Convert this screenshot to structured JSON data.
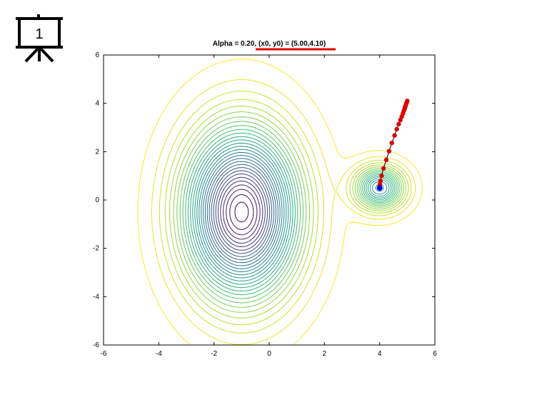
{
  "slide_badge": {
    "number": "1",
    "icon": "presentation-board-icon"
  },
  "chart_data": {
    "type": "contour",
    "title": "Alpha = 0.20, (x0, y0) = (5.00,4.10)",
    "title_highlight": "(x0, y0) = (5.00,4.10)",
    "xlabel": "",
    "ylabel": "",
    "xlim": [
      -6,
      6
    ],
    "ylim": [
      -6,
      6
    ],
    "xticks": [
      -6,
      -4,
      -2,
      0,
      2,
      4,
      6
    ],
    "yticks": [
      -6,
      -4,
      -2,
      0,
      2,
      4,
      6
    ],
    "grid": false,
    "colormap": "viridis",
    "colors": {
      "contour_low": "#6b3d7a",
      "contour_mid": "#2a9d8f",
      "contour_high": "#e8e13a",
      "path_line": "#000000",
      "path_points": "#dd0000",
      "final_point": "#0000dd",
      "title_underline": "#dd0000"
    },
    "minima": [
      {
        "x": -1.0,
        "y": -0.5,
        "description": "global minimum"
      },
      {
        "x": 4.0,
        "y": 0.5,
        "description": "local minimum"
      }
    ],
    "descent_path": {
      "alpha": 0.2,
      "start": [
        5.0,
        4.1
      ],
      "points": [
        [
          5.0,
          4.1
        ],
        [
          4.98,
          4.04
        ],
        [
          4.96,
          3.98
        ],
        [
          4.94,
          3.91
        ],
        [
          4.92,
          3.84
        ],
        [
          4.9,
          3.76
        ],
        [
          4.87,
          3.67
        ],
        [
          4.84,
          3.57
        ],
        [
          4.8,
          3.45
        ],
        [
          4.75,
          3.31
        ],
        [
          4.69,
          3.14
        ],
        [
          4.62,
          2.93
        ],
        [
          4.54,
          2.67
        ],
        [
          4.44,
          2.36
        ],
        [
          4.34,
          2.02
        ],
        [
          4.24,
          1.66
        ],
        [
          4.14,
          1.31
        ],
        [
          4.07,
          1.0
        ],
        [
          4.03,
          0.79
        ],
        [
          4.01,
          0.65
        ],
        [
          4.0,
          0.57
        ],
        [
          4.0,
          0.53
        ],
        [
          4.0,
          0.51
        ]
      ],
      "final": [
        4.0,
        0.5
      ]
    }
  }
}
